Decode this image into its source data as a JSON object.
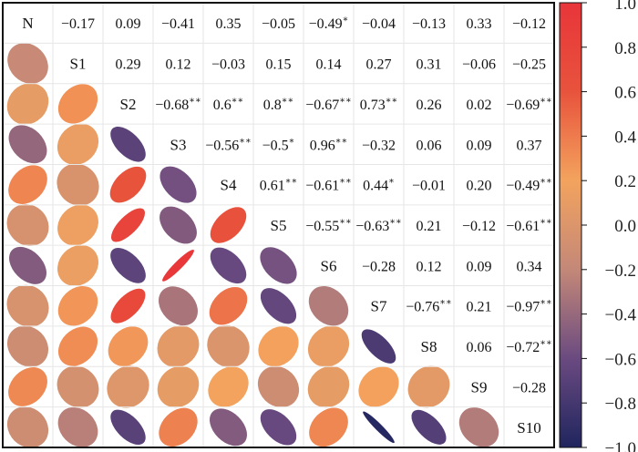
{
  "chart_data": {
    "type": "heatmap",
    "subtype": "correlation-matrix-ellipses",
    "labels": [
      "N",
      "S1",
      "S2",
      "S3",
      "S4",
      "S5",
      "S6",
      "S7",
      "S8",
      "S9",
      "S10"
    ],
    "matrix": [
      [
        1,
        -0.17,
        0.09,
        -0.41,
        0.35,
        -0.05,
        -0.49,
        -0.04,
        -0.13,
        0.33,
        -0.12
      ],
      [
        -0.17,
        1,
        0.29,
        0.12,
        -0.03,
        0.15,
        0.14,
        0.27,
        0.31,
        -0.06,
        -0.25
      ],
      [
        0.09,
        0.29,
        1,
        -0.68,
        0.6,
        0.8,
        -0.67,
        0.73,
        0.26,
        0.02,
        -0.69
      ],
      [
        -0.41,
        0.12,
        -0.68,
        1,
        -0.56,
        -0.5,
        0.96,
        -0.32,
        0.06,
        0.09,
        0.37
      ],
      [
        0.35,
        -0.03,
        0.6,
        -0.56,
        1,
        0.61,
        -0.61,
        0.44,
        -0.01,
        0.2,
        -0.49
      ],
      [
        -0.05,
        0.15,
        0.8,
        -0.5,
        0.61,
        1,
        -0.55,
        -0.63,
        0.21,
        -0.12,
        -0.61
      ],
      [
        -0.49,
        0.14,
        -0.67,
        0.96,
        -0.61,
        -0.55,
        1,
        -0.28,
        0.12,
        0.09,
        0.34
      ],
      [
        -0.04,
        0.27,
        0.73,
        -0.32,
        0.44,
        -0.63,
        -0.28,
        1,
        -0.76,
        0.21,
        -0.97
      ],
      [
        -0.13,
        0.31,
        0.26,
        0.06,
        -0.01,
        0.21,
        0.12,
        -0.76,
        1,
        0.06,
        -0.72
      ],
      [
        0.33,
        -0.06,
        0.02,
        0.09,
        0.2,
        -0.12,
        0.09,
        0.21,
        0.06,
        1,
        -0.28
      ],
      [
        -0.12,
        -0.25,
        -0.69,
        0.37,
        -0.49,
        -0.61,
        0.34,
        -0.97,
        -0.72,
        -0.28,
        1
      ]
    ],
    "upper_text": [
      [
        "",
        "−0.17",
        "0.09",
        "−0.41",
        "0.35",
        "−0.05",
        "−0.49*",
        "−0.04",
        "−0.13",
        "0.33",
        "−0.12"
      ],
      [
        "",
        "",
        "0.29",
        "0.12",
        "−0.03",
        "0.15",
        "0.14",
        "0.27",
        "0.31",
        "−0.06",
        "−0.25"
      ],
      [
        "",
        "",
        "",
        "−0.68**",
        "0.6**",
        "0.8**",
        "−0.67**",
        "0.73**",
        "0.26",
        "0.02",
        "−0.69**"
      ],
      [
        "",
        "",
        "",
        "",
        "−0.56**",
        "−0.5*",
        "0.96**",
        "−0.32",
        "0.06",
        "0.09",
        "0.37"
      ],
      [
        "",
        "",
        "",
        "",
        "",
        "0.61**",
        "−0.61**",
        "0.44*",
        "−0.01",
        "0.20",
        "−0.49**"
      ],
      [
        "",
        "",
        "",
        "",
        "",
        "",
        "−0.55**",
        "−0.63**",
        "0.21",
        "−0.12",
        "−0.61**"
      ],
      [
        "",
        "",
        "",
        "",
        "",
        "",
        "",
        "−0.28",
        "0.12",
        "0.09",
        "0.34"
      ],
      [
        "",
        "",
        "",
        "",
        "",
        "",
        "",
        "",
        "−0.76**",
        "0.21",
        "−0.97**"
      ],
      [
        "",
        "",
        "",
        "",
        "",
        "",
        "",
        "",
        "",
        "0.06",
        "−0.72**"
      ],
      [
        "",
        "",
        "",
        "",
        "",
        "",
        "",
        "",
        "",
        "",
        "−0.28"
      ],
      [
        "",
        "",
        "",
        "",
        "",
        "",
        "",
        "",
        "",
        "",
        ""
      ]
    ],
    "colorbar": {
      "range": [
        -1.0,
        1.0
      ],
      "ticks": [
        "1.0",
        "0.8",
        "0.6",
        "0.4",
        "0.2",
        "0.0",
        "−0.2",
        "−0.4",
        "−0.6",
        "−0.8",
        "−1.0"
      ],
      "tick_values": [
        1.0,
        0.8,
        0.6,
        0.4,
        0.2,
        0.0,
        -0.2,
        -0.4,
        -0.6,
        -0.8,
        -1.0
      ],
      "colors": [
        "#20255e",
        "#6a4a80",
        "#c48878",
        "#f3a35e",
        "#e8533c",
        "#e8353a"
      ]
    }
  }
}
